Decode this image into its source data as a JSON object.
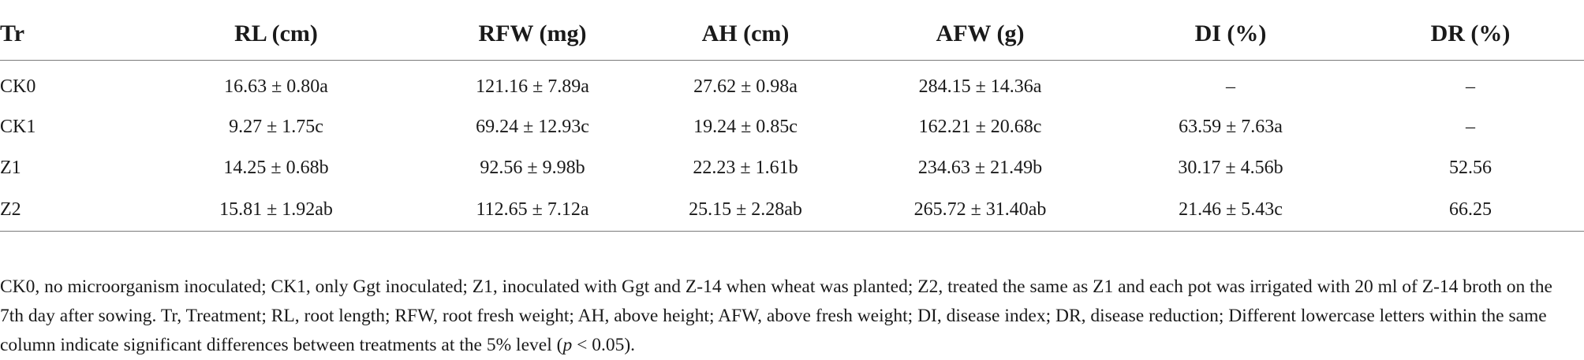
{
  "table": {
    "headers": [
      "Tr",
      "RL (cm)",
      "RFW (mg)",
      "AH (cm)",
      "AFW (g)",
      "DI (%)",
      "DR (%)"
    ],
    "rows": [
      [
        "CK0",
        "16.63 ± 0.80a",
        "121.16 ± 7.89a",
        "27.62 ± 0.98a",
        "284.15 ± 14.36a",
        "–",
        "–"
      ],
      [
        "CK1",
        "9.27 ± 1.75c",
        "69.24 ± 12.93c",
        "19.24 ± 0.85c",
        "162.21 ± 20.68c",
        "63.59 ± 7.63a",
        "–"
      ],
      [
        "Z1",
        "14.25 ± 0.68b",
        "92.56 ± 9.98b",
        "22.23 ± 1.61b",
        "234.63 ± 21.49b",
        "30.17 ± 4.56b",
        "52.56"
      ],
      [
        "Z2",
        "15.81 ± 1.92ab",
        "112.65 ± 7.12a",
        "25.15 ± 2.28ab",
        "265.72 ± 31.40ab",
        "21.46 ± 5.43c",
        "66.25"
      ]
    ]
  },
  "footnote": {
    "text_main": "CK0, no microorganism inoculated; CK1, only Ggt inoculated; Z1, inoculated with Ggt and Z-14 when wheat was planted; Z2, treated the same as Z1 and each pot was irrigated with 20 ml of Z-14 broth on the 7th day after sowing. Tr, Treatment; RL, root length; RFW, root fresh weight; AH, above height; AFW, above fresh weight; DI, disease index; DR, disease reduction; Different lowercase letters within the same column indicate significant differences between treatments at the 5% level (",
    "p_symbol": "p",
    "text_end": " < 0.05)."
  }
}
